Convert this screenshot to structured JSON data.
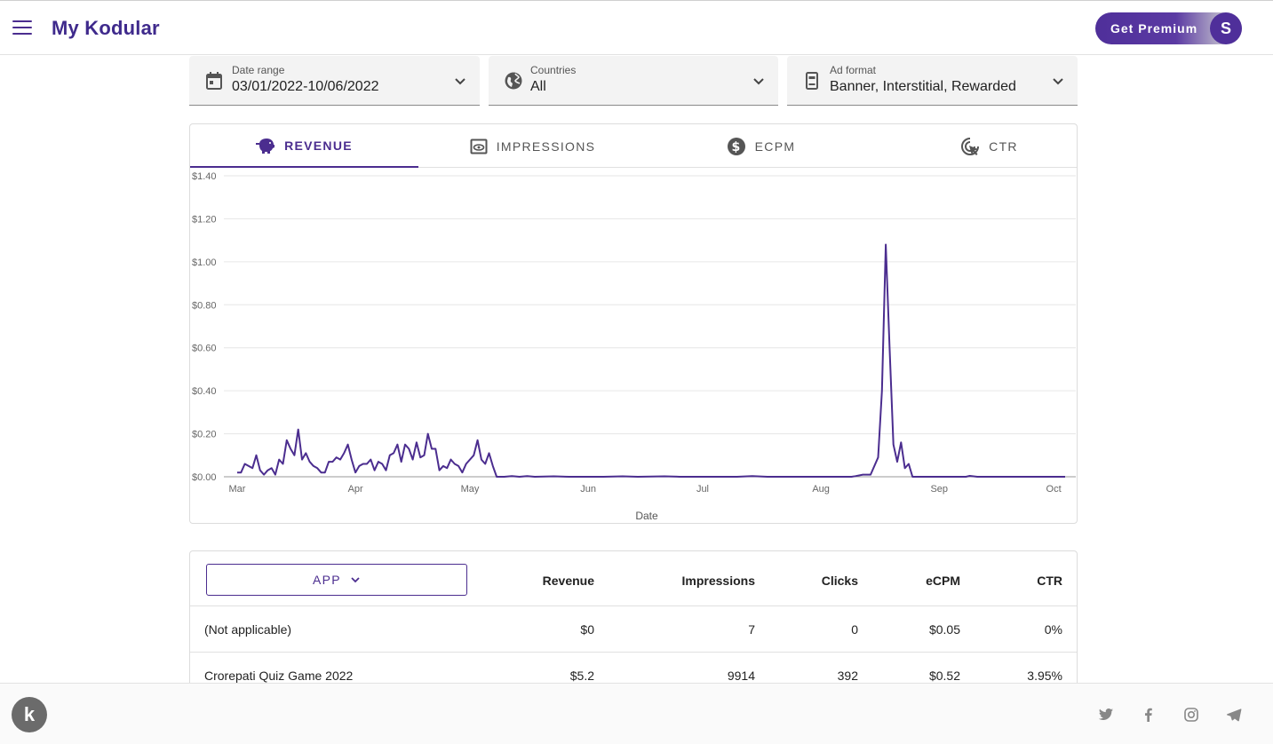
{
  "header": {
    "brand": "My Kodular",
    "premium_label": "Get Premium",
    "avatar_initial": "S",
    "menu_icon": "hamburger-menu-icon"
  },
  "filters": [
    {
      "label": "Date range",
      "value": "03/01/2022-10/06/2022",
      "icon": "calendar-icon"
    },
    {
      "label": "Countries",
      "value": "All",
      "icon": "globe-icon"
    },
    {
      "label": "Ad format",
      "value": "Banner, Interstitial, Rewarded",
      "icon": "ad-format-icon"
    }
  ],
  "tabs": [
    {
      "label": "REVENUE",
      "icon": "piggy-bank-icon",
      "active": true
    },
    {
      "label": "IMPRESSIONS",
      "icon": "eye-icon",
      "active": false
    },
    {
      "label": "ECPM",
      "icon": "dollar-icon",
      "active": false
    },
    {
      "label": "CTR",
      "icon": "click-icon",
      "active": false
    }
  ],
  "chart_data": {
    "type": "line",
    "xlabel": "Date",
    "ylabel": "",
    "ylim": [
      0,
      1.4
    ],
    "yticks": [
      "$0.00",
      "$0.20",
      "$0.40",
      "$0.60",
      "$0.80",
      "$1.00",
      "$1.20",
      "$1.40"
    ],
    "xticks": [
      {
        "label": "Mar",
        "date": "2022-03-01"
      },
      {
        "label": "Apr",
        "date": "2022-04-01"
      },
      {
        "label": "May",
        "date": "2022-05-01"
      },
      {
        "label": "Jun",
        "date": "2022-06-01"
      },
      {
        "label": "Jul",
        "date": "2022-07-01"
      },
      {
        "label": "Aug",
        "date": "2022-08-01"
      },
      {
        "label": "Sep",
        "date": "2022-09-01"
      },
      {
        "label": "Oct",
        "date": "2022-10-01"
      }
    ],
    "xlim": [
      "2022-03-01",
      "2022-10-04"
    ],
    "grid": true,
    "color": "#4b2d8f",
    "series": [
      {
        "points": [
          [
            "2022-03-01",
            0.02
          ],
          [
            "2022-03-02",
            0.02
          ],
          [
            "2022-03-03",
            0.06
          ],
          [
            "2022-03-04",
            0.05
          ],
          [
            "2022-03-05",
            0.04
          ],
          [
            "2022-03-06",
            0.1
          ],
          [
            "2022-03-07",
            0.03
          ],
          [
            "2022-03-08",
            0.01
          ],
          [
            "2022-03-09",
            0.03
          ],
          [
            "2022-03-10",
            0.04
          ],
          [
            "2022-03-11",
            0.01
          ],
          [
            "2022-03-12",
            0.08
          ],
          [
            "2022-03-13",
            0.06
          ],
          [
            "2022-03-14",
            0.17
          ],
          [
            "2022-03-15",
            0.13
          ],
          [
            "2022-03-16",
            0.1
          ],
          [
            "2022-03-17",
            0.22
          ],
          [
            "2022-03-18",
            0.08
          ],
          [
            "2022-03-19",
            0.11
          ],
          [
            "2022-03-20",
            0.07
          ],
          [
            "2022-03-21",
            0.05
          ],
          [
            "2022-03-22",
            0.04
          ],
          [
            "2022-03-23",
            0.02
          ],
          [
            "2022-03-24",
            0.02
          ],
          [
            "2022-03-25",
            0.07
          ],
          [
            "2022-03-26",
            0.07
          ],
          [
            "2022-03-27",
            0.09
          ],
          [
            "2022-03-28",
            0.08
          ],
          [
            "2022-03-29",
            0.11
          ],
          [
            "2022-03-30",
            0.15
          ],
          [
            "2022-03-31",
            0.08
          ],
          [
            "2022-04-01",
            0.02
          ],
          [
            "2022-04-02",
            0.05
          ],
          [
            "2022-04-03",
            0.06
          ],
          [
            "2022-04-04",
            0.06
          ],
          [
            "2022-04-05",
            0.08
          ],
          [
            "2022-04-06",
            0.03
          ],
          [
            "2022-04-07",
            0.07
          ],
          [
            "2022-04-08",
            0.06
          ],
          [
            "2022-04-09",
            0.03
          ],
          [
            "2022-04-10",
            0.1
          ],
          [
            "2022-04-11",
            0.11
          ],
          [
            "2022-04-12",
            0.15
          ],
          [
            "2022-04-13",
            0.07
          ],
          [
            "2022-04-14",
            0.15
          ],
          [
            "2022-04-15",
            0.13
          ],
          [
            "2022-04-16",
            0.08
          ],
          [
            "2022-04-17",
            0.16
          ],
          [
            "2022-04-18",
            0.09
          ],
          [
            "2022-04-19",
            0.1
          ],
          [
            "2022-04-20",
            0.2
          ],
          [
            "2022-04-21",
            0.13
          ],
          [
            "2022-04-22",
            0.13
          ],
          [
            "2022-04-23",
            0.03
          ],
          [
            "2022-04-24",
            0.05
          ],
          [
            "2022-04-25",
            0.04
          ],
          [
            "2022-04-26",
            0.08
          ],
          [
            "2022-04-27",
            0.06
          ],
          [
            "2022-04-28",
            0.05
          ],
          [
            "2022-04-29",
            0.02
          ],
          [
            "2022-04-30",
            0.06
          ],
          [
            "2022-05-01",
            0.08
          ],
          [
            "2022-05-02",
            0.1
          ],
          [
            "2022-05-03",
            0.17
          ],
          [
            "2022-05-04",
            0.08
          ],
          [
            "2022-05-05",
            0.06
          ],
          [
            "2022-05-06",
            0.11
          ],
          [
            "2022-05-07",
            0.05
          ],
          [
            "2022-05-08",
            0.0
          ],
          [
            "2022-05-10",
            0.0
          ],
          [
            "2022-05-12",
            0.003
          ],
          [
            "2022-05-14",
            0.0
          ],
          [
            "2022-05-16",
            0.003
          ],
          [
            "2022-05-18",
            0.0
          ],
          [
            "2022-05-23",
            0.002
          ],
          [
            "2022-05-27",
            0.0
          ],
          [
            "2022-06-05",
            0.0
          ],
          [
            "2022-06-10",
            0.002
          ],
          [
            "2022-06-14",
            0.0
          ],
          [
            "2022-06-21",
            0.002
          ],
          [
            "2022-06-25",
            0.0
          ],
          [
            "2022-07-10",
            0.0
          ],
          [
            "2022-07-14",
            0.003
          ],
          [
            "2022-07-18",
            0.0
          ],
          [
            "2022-08-09",
            0.0
          ],
          [
            "2022-08-10",
            0.003
          ],
          [
            "2022-08-12",
            0.01
          ],
          [
            "2022-08-14",
            0.01
          ],
          [
            "2022-08-16",
            0.09
          ],
          [
            "2022-08-17",
            0.4
          ],
          [
            "2022-08-18",
            1.08
          ],
          [
            "2022-08-19",
            0.6
          ],
          [
            "2022-08-20",
            0.15
          ],
          [
            "2022-08-21",
            0.07
          ],
          [
            "2022-08-22",
            0.16
          ],
          [
            "2022-08-23",
            0.04
          ],
          [
            "2022-08-24",
            0.06
          ],
          [
            "2022-08-25",
            0.0
          ],
          [
            "2022-09-08",
            0.0
          ],
          [
            "2022-09-09",
            0.004
          ],
          [
            "2022-09-11",
            0.0
          ],
          [
            "2022-10-04",
            0.0
          ]
        ]
      }
    ]
  },
  "table": {
    "group_by_label": "APP",
    "columns": [
      "Revenue",
      "Impressions",
      "Clicks",
      "eCPM",
      "CTR"
    ],
    "rows": [
      {
        "name": "(Not applicable)",
        "revenue": "$0",
        "impressions": "7",
        "clicks": "0",
        "ecpm": "$0.05",
        "ctr": "0%"
      },
      {
        "name": "Crorepati Quiz Game 2022",
        "revenue": "$5.2",
        "impressions": "9914",
        "clicks": "392",
        "ecpm": "$0.52",
        "ctr": "3.95%"
      }
    ]
  },
  "footer": {
    "logo_letter": "k",
    "social_icons": [
      "twitter-icon",
      "facebook-icon",
      "instagram-icon",
      "telegram-icon"
    ]
  }
}
